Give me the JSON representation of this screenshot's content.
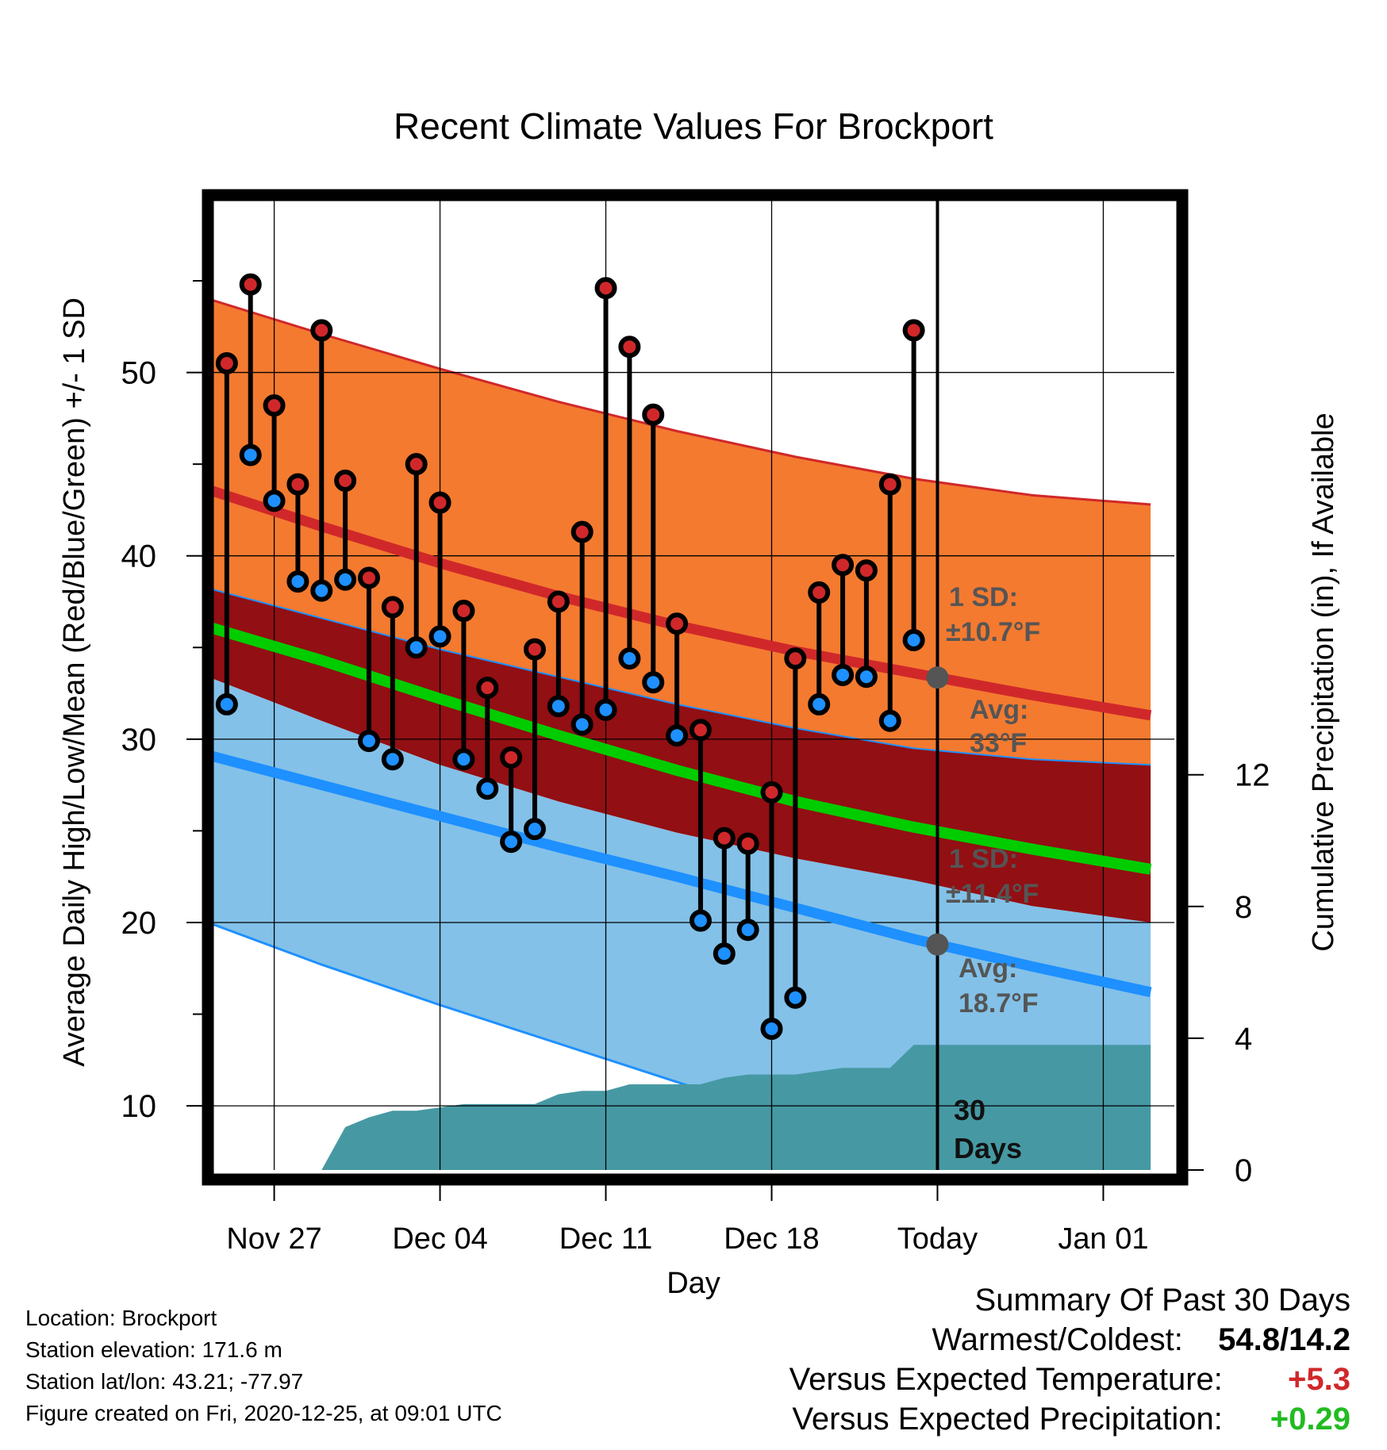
{
  "chart_data": {
    "type": "line",
    "title": "Recent Climate Values For Brockport",
    "xlabel": "Day",
    "ylabel": "Average Daily High/Low/Mean (Red/Blue/Green) +/- 1 SD",
    "y2label": "Cumulative Precipitation (in), If Available",
    "x_tick_labels": [
      "Nov 27",
      "Dec 04",
      "Dec 11",
      "Dec 18",
      "Today",
      "Jan 01"
    ],
    "x_tick_days": [
      2,
      9,
      16,
      23,
      30,
      37
    ],
    "x_range_days": [
      -1,
      40
    ],
    "ylim": [
      6.5,
      59.5
    ],
    "y_ticks": [
      10,
      20,
      30,
      40,
      50
    ],
    "y2lim": [
      0,
      29.5
    ],
    "y2_ticks": [
      0,
      4,
      8,
      12
    ],
    "today_day": 30,
    "normal_high": {
      "days": [
        -1,
        4,
        9,
        14,
        19,
        24,
        29,
        34,
        39
      ],
      "mean": [
        43.7,
        41.6,
        39.6,
        37.8,
        36.2,
        34.8,
        33.6,
        32.4,
        31.3
      ],
      "upper": [
        54.1,
        52.1,
        50.2,
        48.4,
        46.8,
        45.4,
        44.2,
        43.3,
        42.8
      ],
      "lower": [
        38.3,
        36.6,
        34.9,
        33.4,
        31.9,
        30.6,
        29.5,
        28.9,
        28.6
      ]
    },
    "normal_mean": {
      "days": [
        -1,
        4,
        9,
        14,
        19,
        24,
        29,
        34,
        39
      ],
      "mean": [
        36.2,
        34.3,
        32.2,
        30.2,
        28.3,
        26.6,
        25.2,
        24.0,
        22.9
      ]
    },
    "normal_low": {
      "days": [
        -1,
        4,
        9,
        14,
        19,
        24,
        29,
        34,
        39
      ],
      "mean": [
        29.2,
        27.5,
        25.8,
        24.1,
        22.5,
        20.8,
        19.1,
        17.6,
        16.2
      ],
      "upper": [
        33.5,
        31.0,
        28.6,
        26.6,
        24.9,
        23.5,
        22.3,
        20.9,
        20.0
      ],
      "lower": [
        20.1,
        17.7,
        15.5,
        13.4,
        11.3,
        9.2,
        7.1,
        5.0,
        3.0
      ]
    },
    "observed": {
      "days": [
        0,
        1,
        2,
        3,
        4,
        5,
        6,
        7,
        8,
        9,
        10,
        11,
        12,
        13,
        14,
        15,
        16,
        17,
        18,
        19,
        20,
        21,
        22,
        23,
        24,
        25,
        26,
        27,
        28,
        29
      ],
      "high": [
        50.5,
        54.8,
        48.2,
        43.9,
        52.3,
        44.1,
        38.8,
        37.2,
        45.0,
        42.9,
        37.0,
        32.8,
        29.0,
        34.9,
        37.5,
        41.3,
        54.6,
        51.4,
        47.7,
        36.3,
        30.5,
        24.6,
        24.3,
        27.1,
        34.4,
        38.0,
        39.5,
        39.2,
        43.9,
        52.3
      ],
      "low": [
        31.9,
        45.5,
        43.0,
        38.6,
        38.1,
        38.7,
        29.9,
        28.9,
        35.0,
        35.6,
        28.9,
        27.3,
        24.4,
        25.1,
        31.8,
        30.8,
        31.6,
        34.4,
        33.1,
        30.2,
        20.1,
        18.3,
        19.6,
        14.2,
        15.9,
        31.9,
        33.5,
        33.4,
        31.0,
        35.4
      ]
    },
    "precipitation": {
      "days": [
        4,
        5,
        6,
        7,
        8,
        9,
        10,
        11,
        12,
        13,
        14,
        15,
        16,
        17,
        18,
        19,
        20,
        21,
        22,
        23,
        24,
        25,
        26,
        27,
        28,
        29,
        39
      ],
      "cumulative": [
        0.0,
        1.3,
        1.6,
        1.8,
        1.8,
        1.9,
        2.0,
        2.0,
        2.0,
        2.0,
        2.3,
        2.4,
        2.4,
        2.6,
        2.6,
        2.6,
        2.6,
        2.8,
        2.9,
        2.9,
        2.9,
        3.0,
        3.1,
        3.1,
        3.1,
        3.8,
        3.8
      ]
    },
    "annotations": {
      "high_sd": "1 SD:",
      "high_sd_val": "±10.7°F",
      "high_avg": "Avg:",
      "high_avg_val": "33°F",
      "low_sd": "1 SD:",
      "low_sd_val": "±11.4°F",
      "low_avg": "Avg:",
      "low_avg_val": "18.7°F",
      "days_num": "30",
      "days_word": "Days"
    },
    "colors": {
      "high_band": "#f47a30",
      "high_line": "#d0282a",
      "mid_band": "#920f13",
      "mean_line": "#00cc00",
      "low_band": "#83c1e8",
      "low_line": "#1e90ff",
      "precip": "#4699a3",
      "marker_high": "#d0282a",
      "marker_low": "#1e90ff",
      "avg_marker": "#555555"
    },
    "grid": true
  },
  "meta": {
    "location": "Location: Brockport",
    "elevation": "Station elevation: 171.6 m",
    "latlon": "Station lat/lon: 43.21; -77.97",
    "created": "Figure created on Fri, 2020-12-25, at 09:01 UTC"
  },
  "summary": {
    "title": "Summary Of Past 30 Days",
    "warm_cold_label": "Warmest/Coldest:",
    "warm_cold_value": "54.8/14.2",
    "temp_label": "Versus Expected Temperature:",
    "temp_value": "+5.3",
    "temp_color": "#d0282a",
    "precip_label": "Versus Expected Precipitation:",
    "precip_value": "+0.29",
    "precip_color": "#22bb22"
  }
}
